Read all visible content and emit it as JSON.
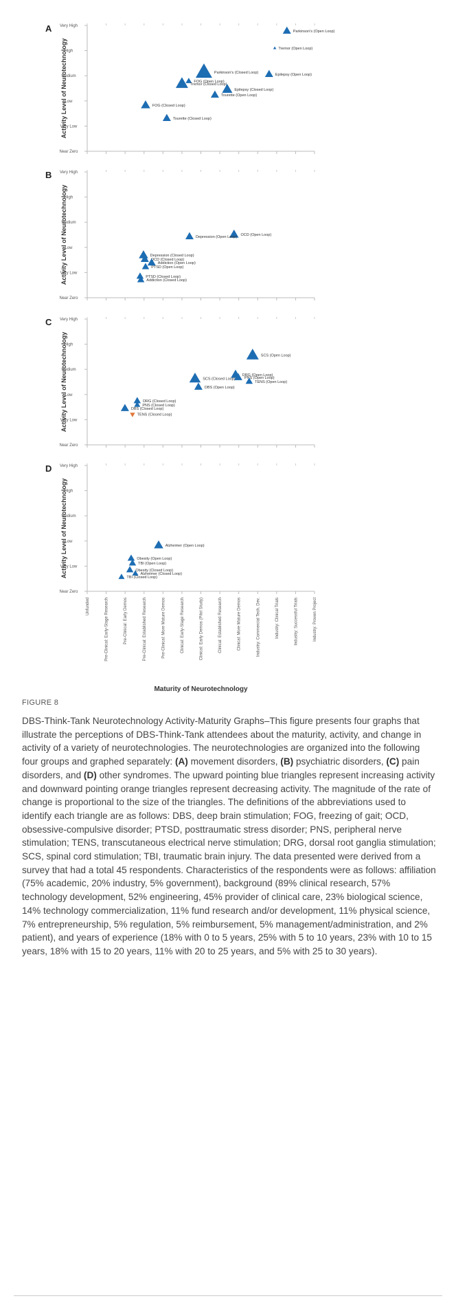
{
  "chart_data": [
    {
      "type": "scatter",
      "panel": "A",
      "ylabel": "Activity Level of Neurotechnology",
      "xlim": [
        0,
        12
      ],
      "xticks": [
        0,
        1,
        2,
        3,
        4,
        5,
        6,
        7,
        8,
        9,
        10,
        11,
        12
      ],
      "ylim": [
        0,
        5
      ],
      "yticks": [
        {
          "value": 0,
          "label": "Near Zero"
        },
        {
          "value": 1,
          "label": "Very Low"
        },
        {
          "value": 2,
          "label": "Low"
        },
        {
          "value": 3,
          "label": "Medium"
        },
        {
          "value": 4,
          "label": "High"
        },
        {
          "value": 5,
          "label": "Very High"
        }
      ],
      "grid": false,
      "labels": [
        "Parkinson's (Open Loop)",
        "Tremor (Open Loop)",
        "Parkinson's (Closed Loop)",
        "FOG (Open Loop)",
        "Tremor (Closed Loop)",
        "Epilepsy (Open Loop)",
        "Epilepsy (Closed Loop)",
        "Tourette (Open Loop)",
        "FOG (Closed Loop)",
        "Tourette (Closed Loop)"
      ],
      "x": [
        10.54,
        9.9,
        6.16,
        5.36,
        5.0,
        9.6,
        7.39,
        6.74,
        3.08,
        4.2
      ],
      "y": [
        4.78,
        4.1,
        3.14,
        2.79,
        2.68,
        3.06,
        2.46,
        2.24,
        1.83,
        1.31
      ],
      "sizes": [
        8,
        3,
        16,
        6,
        12,
        8,
        10,
        8,
        9,
        8
      ],
      "markers": [
        "up",
        "up",
        "up",
        "up",
        "up",
        "up",
        "up",
        "up",
        "up",
        "up"
      ],
      "colors": [
        "#1d6db3",
        "#1d6db3",
        "#1d6db3",
        "#1d6db3",
        "#1d6db3",
        "#1d6db3",
        "#1d6db3",
        "#1d6db3",
        "#1d6db3",
        "#1d6db3"
      ]
    },
    {
      "type": "scatter",
      "panel": "B",
      "ylabel": "Activity Level of Neurotechnology",
      "xlim": [
        0,
        12
      ],
      "xticks": [
        0,
        1,
        2,
        3,
        4,
        5,
        6,
        7,
        8,
        9,
        10,
        11,
        12
      ],
      "ylim": [
        0,
        5
      ],
      "yticks": [
        {
          "value": 0,
          "label": "Near Zero"
        },
        {
          "value": 1,
          "label": "Very Low"
        },
        {
          "value": 2,
          "label": "Low"
        },
        {
          "value": 3,
          "label": "Medium"
        },
        {
          "value": 4,
          "label": "High"
        },
        {
          "value": 5,
          "label": "Very High"
        }
      ],
      "grid": false,
      "labels": [
        "OCD (Open Loop)",
        "Depression (Open Loop)",
        "Depression (Closed Loop)",
        "OCD (Closed Loop)",
        "Addiction (Open Loop)",
        "PTSD (Open Loop)",
        "PTSD (Closed Loop)",
        "Addiction (Closed Loop)"
      ],
      "x": [
        7.75,
        5.4,
        2.97,
        3.04,
        3.4,
        3.08,
        2.79,
        2.83
      ],
      "y": [
        2.51,
        2.43,
        1.69,
        1.53,
        1.39,
        1.23,
        0.85,
        0.71
      ],
      "sizes": [
        9,
        8,
        9,
        8,
        8,
        7,
        7,
        7
      ],
      "markers": [
        "up",
        "up",
        "up",
        "up",
        "up",
        "up",
        "up",
        "up"
      ],
      "colors": [
        "#1d6db3",
        "#1d6db3",
        "#1d6db3",
        "#1d6db3",
        "#1d6db3",
        "#1d6db3",
        "#1d6db3",
        "#1d6db3"
      ]
    },
    {
      "type": "scatter",
      "panel": "C",
      "ylabel": "Activity Level of Neurotechnology",
      "xlim": [
        0,
        12
      ],
      "xticks": [
        0,
        1,
        2,
        3,
        4,
        5,
        6,
        7,
        8,
        9,
        10,
        11,
        12
      ],
      "ylim": [
        0,
        5
      ],
      "yticks": [
        {
          "value": 0,
          "label": "Near Zero"
        },
        {
          "value": 1,
          "label": "Very Low"
        },
        {
          "value": 2,
          "label": "Low"
        },
        {
          "value": 3,
          "label": "Medium"
        },
        {
          "value": 4,
          "label": "High"
        },
        {
          "value": 5,
          "label": "Very High"
        }
      ],
      "grid": false,
      "labels": [
        "SCS (Open Loop)",
        "DRG (Open Loop)",
        "PNS (Open Loop)",
        "TENS (Open Loop)",
        "SCS (Closed Loop)",
        "DBS (Open Loop)",
        "DRG (Closed Loop)",
        "PNS (Closed Loop)",
        "DBS (Closed Loop)",
        "TENS (Closed Loop)"
      ],
      "x": [
        8.73,
        7.83,
        7.97,
        8.55,
        5.69,
        5.87,
        2.64,
        2.64,
        1.99,
        2.39
      ],
      "y": [
        3.56,
        2.79,
        2.68,
        2.52,
        2.63,
        2.3,
        1.75,
        1.59,
        1.45,
        1.21
      ],
      "sizes": [
        12,
        9,
        8,
        7,
        11,
        8,
        7,
        6,
        8,
        5
      ],
      "markers": [
        "up",
        "up",
        "up",
        "up",
        "up",
        "up",
        "up",
        "up",
        "up",
        "down"
      ],
      "colors": [
        "#1d6db3",
        "#1d6db3",
        "#1d6db3",
        "#1d6db3",
        "#1d6db3",
        "#1d6db3",
        "#1d6db3",
        "#1d6db3",
        "#1d6db3",
        "#e0783a"
      ]
    },
    {
      "type": "scatter",
      "panel": "D",
      "ylabel": "Activity Level of Neurotechnology",
      "xlabel": "Maturity of Neurotechnology",
      "xlim": [
        0,
        12
      ],
      "xticks": [
        {
          "value": 0,
          "label": "Unfunded"
        },
        {
          "value": 1,
          "label": "Pre-Clinical: Early-Stage Research"
        },
        {
          "value": 2,
          "label": "Pre-Clinical: Early Demos"
        },
        {
          "value": 3,
          "label": "Pre-Clinical: Established Research"
        },
        {
          "value": 4,
          "label": "Pre-Clinical: More Mature Demos"
        },
        {
          "value": 5,
          "label": "Clinical: Early-Stage Research"
        },
        {
          "value": 6,
          "label": "Clinical: Early Demos (Pilot Study)"
        },
        {
          "value": 7,
          "label": "Clinical: Established Research"
        },
        {
          "value": 8,
          "label": "Clinical: More Mature Demos"
        },
        {
          "value": 9,
          "label": "Industry: Commercial Tech. Dev."
        },
        {
          "value": 10,
          "label": "Industry: Clinical Trials"
        },
        {
          "value": 11,
          "label": "Industry: Successful Trials"
        },
        {
          "value": 12,
          "label": "Industry: Proven Project"
        }
      ],
      "ylim": [
        0,
        5
      ],
      "yticks": [
        {
          "value": 0,
          "label": "Near Zero"
        },
        {
          "value": 1,
          "label": "Very Low"
        },
        {
          "value": 2,
          "label": "Low"
        },
        {
          "value": 3,
          "label": "Medium"
        },
        {
          "value": 4,
          "label": "High"
        },
        {
          "value": 5,
          "label": "Very High"
        }
      ],
      "grid": false,
      "labels": [
        "Alzheimer (Open Loop)",
        "Obesity (Open Loop)",
        "TBI (Open Loop)",
        "Obesity (Closed Loop)",
        "Alzheimer (Closed Loop)",
        "TBI (Closed Loop)"
      ],
      "x": [
        3.77,
        2.32,
        2.39,
        2.25,
        2.54,
        1.81
      ],
      "y": [
        1.83,
        1.31,
        1.12,
        0.85,
        0.71,
        0.57
      ],
      "sizes": [
        9,
        7,
        7,
        7,
        6,
        6
      ],
      "markers": [
        "up",
        "up",
        "up",
        "up",
        "up",
        "up"
      ],
      "colors": [
        "#1d6db3",
        "#1d6db3",
        "#1d6db3",
        "#1d6db3",
        "#1d6db3",
        "#1d6db3"
      ]
    }
  ],
  "caption": {
    "label": "FIGURE 8",
    "text": [
      "DBS-Think-Tank Neurotechnology Activity-Maturity Graphs–This figure presents four graphs that illustrate the perceptions of DBS-Think-Tank attendees about the maturity, activity, and change in activity of a variety of neurotechnologies. The neurotechnologies are organized into the following four groups and graphed separately: ",
      "(A)",
      " movement disorders, ",
      "(B)",
      " psychiatric disorders, ",
      "(C)",
      " pain disorders, and ",
      "(D)",
      " other syndromes. The upward pointing blue triangles represent increasing activity and downward pointing orange triangles represent decreasing activity. The magnitude of the rate of change is proportional to the size of the triangles. The definitions of the abbreviations used to identify each triangle are as follows: DBS, deep brain stimulation; FOG, freezing of gait; OCD, obsessive-compulsive disorder; PTSD, posttraumatic stress disorder; PNS, peripheral nerve stimulation; TENS, transcutaneous electrical nerve stimulation; DRG, dorsal root ganglia stimulation; SCS, spinal cord stimulation; TBI, traumatic brain injury. The data presented were derived from a survey that had a total 45 respondents. Characteristics of the respondents were as follows: affiliation (75% academic, 20% industry, 5% government), background (89% clinical research, 57% technology development, 52% engineering, 45% provider of clinical care, 23% biological science, 14% technology commercialization, 11% fund research and/or development, 11% physical science, 7% entrepreneurship, 5% regulation, 5% reimbursement, 5% management/administration, and 2% patient), and years of experience (18% with 0 to 5 years, 25% with 5 to 10 years, 23% with 10 to 15 years, 18% with 15 to 20 years, 11% with 20 to 25 years, and 5% with 25 to 30 years)."
    ]
  }
}
